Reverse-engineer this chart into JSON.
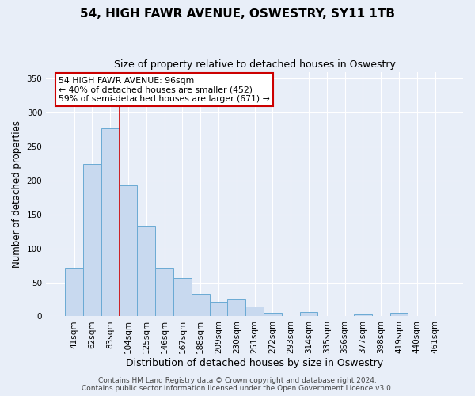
{
  "title": "54, HIGH FAWR AVENUE, OSWESTRY, SY11 1TB",
  "subtitle": "Size of property relative to detached houses in Oswestry",
  "xlabel": "Distribution of detached houses by size in Oswestry",
  "ylabel": "Number of detached properties",
  "bar_labels": [
    "41sqm",
    "62sqm",
    "83sqm",
    "104sqm",
    "125sqm",
    "146sqm",
    "167sqm",
    "188sqm",
    "209sqm",
    "230sqm",
    "251sqm",
    "272sqm",
    "293sqm",
    "314sqm",
    "335sqm",
    "356sqm",
    "377sqm",
    "398sqm",
    "419sqm",
    "440sqm",
    "461sqm"
  ],
  "bar_values": [
    70,
    224,
    277,
    193,
    133,
    70,
    57,
    33,
    21,
    25,
    15,
    5,
    1,
    6,
    1,
    1,
    3,
    1,
    5,
    1,
    1
  ],
  "bar_color": "#c8d9ef",
  "bar_edge_color": "#6aaad4",
  "red_line_x": 2.5,
  "vline_color": "#cc0000",
  "annotation_text": "54 HIGH FAWR AVENUE: 96sqm\n← 40% of detached houses are smaller (452)\n59% of semi-detached houses are larger (671) →",
  "annotation_box_color": "#ffffff",
  "annotation_box_edge_color": "#cc0000",
  "ylim": [
    0,
    360
  ],
  "yticks": [
    0,
    50,
    100,
    150,
    200,
    250,
    300,
    350
  ],
  "background_color": "#e8eef8",
  "plot_background_color": "#e8eef8",
  "grid_color": "#ffffff",
  "footer_line1": "Contains HM Land Registry data © Crown copyright and database right 2024.",
  "footer_line2": "Contains public sector information licensed under the Open Government Licence v3.0.",
  "title_fontsize": 11,
  "subtitle_fontsize": 9,
  "xlabel_fontsize": 9,
  "ylabel_fontsize": 8.5,
  "tick_fontsize": 7.5,
  "footer_fontsize": 6.5
}
